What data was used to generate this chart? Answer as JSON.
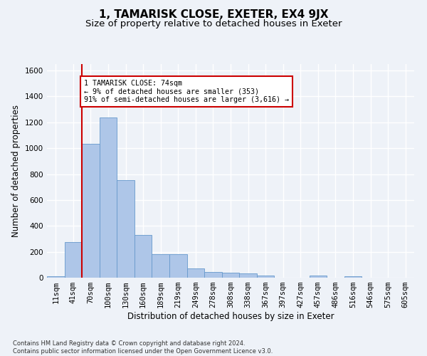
{
  "title": "1, TAMARISK CLOSE, EXETER, EX4 9JX",
  "subtitle": "Size of property relative to detached houses in Exeter",
  "xlabel": "Distribution of detached houses by size in Exeter",
  "ylabel": "Number of detached properties",
  "footer_line1": "Contains HM Land Registry data © Crown copyright and database right 2024.",
  "footer_line2": "Contains public sector information licensed under the Open Government Licence v3.0.",
  "bin_labels": [
    "11sqm",
    "41sqm",
    "70sqm",
    "100sqm",
    "130sqm",
    "160sqm",
    "189sqm",
    "219sqm",
    "249sqm",
    "278sqm",
    "308sqm",
    "338sqm",
    "367sqm",
    "397sqm",
    "427sqm",
    "457sqm",
    "486sqm",
    "516sqm",
    "546sqm",
    "575sqm",
    "605sqm"
  ],
  "bar_values": [
    10,
    275,
    1035,
    1240,
    755,
    330,
    180,
    180,
    72,
    45,
    38,
    35,
    18,
    0,
    0,
    15,
    0,
    12,
    0,
    0,
    0
  ],
  "bar_color": "#aec6e8",
  "bar_edge_color": "#6699cc",
  "vline_x_index": 2,
  "vline_color": "#cc0000",
  "annotation_line1": "1 TAMARISK CLOSE: 74sqm",
  "annotation_line2": "← 9% of detached houses are smaller (353)",
  "annotation_line3": "91% of semi-detached houses are larger (3,616) →",
  "annotation_box_color": "#ffffff",
  "annotation_box_edge": "#cc0000",
  "ylim": [
    0,
    1650
  ],
  "yticks": [
    0,
    200,
    400,
    600,
    800,
    1000,
    1200,
    1400,
    1600
  ],
  "bg_color": "#eef2f8",
  "grid_color": "#ffffff",
  "title_fontsize": 11,
  "subtitle_fontsize": 9.5,
  "axis_label_fontsize": 8.5,
  "tick_fontsize": 7.5,
  "footer_fontsize": 6.0
}
